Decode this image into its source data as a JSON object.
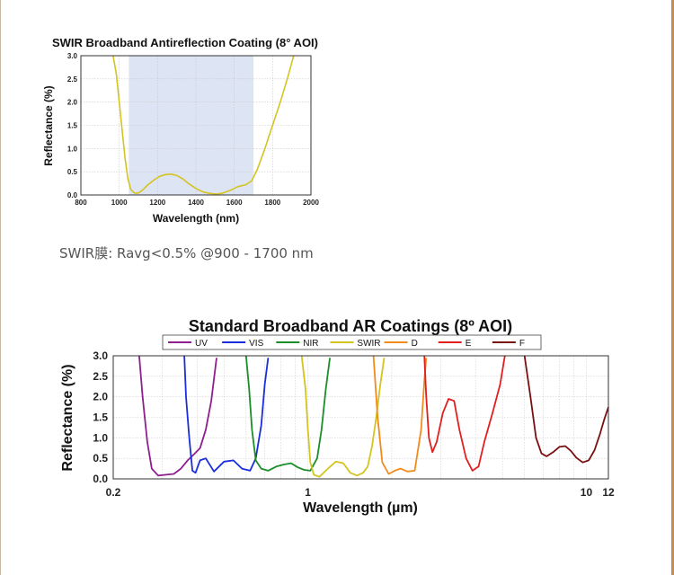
{
  "caption": "SWIR膜: Ravg<0.5% @900 - 1700 nm",
  "chart_data": [
    {
      "type": "line",
      "title": "SWIR Broadband Antireflection Coating (8° AOI)",
      "xlabel": "Wavelength (nm)",
      "ylabel": "Reflectance (%)",
      "xlim": [
        800,
        2000
      ],
      "ylim": [
        0,
        3
      ],
      "xticks": [
        "800",
        "1000",
        "1200",
        "1400",
        "1600",
        "1800",
        "2000"
      ],
      "yticks": [
        "0.0",
        "0.5",
        "1.0",
        "1.5",
        "2.0",
        "2.5",
        "3.0"
      ],
      "grid": true,
      "shaded_band": [
        1050,
        1700
      ],
      "band_color": "#dde4f4",
      "series": [
        {
          "color": "#d4c421",
          "x": [
            968,
            985,
            1000,
            1015,
            1030,
            1045,
            1060,
            1080,
            1100,
            1120,
            1150,
            1180,
            1210,
            1240,
            1270,
            1300,
            1330,
            1360,
            1400,
            1440,
            1480,
            1510,
            1540,
            1580,
            1620,
            1660,
            1690,
            1720,
            1760,
            1800,
            1840,
            1880,
            1910
          ],
          "y": [
            3.0,
            2.6,
            2.0,
            1.4,
            0.8,
            0.35,
            0.12,
            0.04,
            0.04,
            0.1,
            0.22,
            0.32,
            0.4,
            0.44,
            0.45,
            0.42,
            0.35,
            0.25,
            0.14,
            0.06,
            0.03,
            0.02,
            0.04,
            0.1,
            0.18,
            0.22,
            0.3,
            0.55,
            1.0,
            1.5,
            2.0,
            2.55,
            3.0
          ]
        }
      ]
    },
    {
      "type": "line",
      "title": "Standard Broadband AR Coatings (8º AOI)",
      "xlabel": "Wavelength (µm)",
      "ylabel": "Reflectance (%)",
      "xscale": "log",
      "xlim": [
        0.2,
        12
      ],
      "ylim": [
        0,
        3
      ],
      "xticks": [
        {
          "value": 0.2,
          "label": "0.2"
        },
        {
          "value": 1,
          "label": "1"
        },
        {
          "value": 10,
          "label": "10"
        },
        {
          "value": 12,
          "label": "12"
        }
      ],
      "yticks": [
        "0.0",
        "0.5",
        "1.0",
        "1.5",
        "2.0",
        "2.5",
        "3.0"
      ],
      "grid": true,
      "legend_position": "top",
      "series": [
        {
          "name": "UV",
          "color": "#8e1f8e",
          "x": [
            0.248,
            0.255,
            0.265,
            0.275,
            0.29,
            0.31,
            0.33,
            0.35,
            0.37,
            0.39,
            0.41,
            0.43,
            0.45,
            0.47
          ],
          "y": [
            3.0,
            2.0,
            0.9,
            0.25,
            0.08,
            0.1,
            0.12,
            0.25,
            0.45,
            0.6,
            0.75,
            1.2,
            1.9,
            2.95
          ]
        },
        {
          "name": "VIS",
          "color": "#1a2edc",
          "x": [
            0.36,
            0.365,
            0.375,
            0.385,
            0.395,
            0.41,
            0.43,
            0.46,
            0.5,
            0.54,
            0.58,
            0.62,
            0.65,
            0.68,
            0.7,
            0.72
          ],
          "y": [
            3.0,
            2.0,
            1.0,
            0.2,
            0.15,
            0.45,
            0.5,
            0.18,
            0.42,
            0.45,
            0.25,
            0.2,
            0.5,
            1.3,
            2.3,
            2.95
          ]
        },
        {
          "name": "NIR",
          "color": "#1b8e2a",
          "x": [
            0.6,
            0.615,
            0.63,
            0.65,
            0.68,
            0.72,
            0.77,
            0.82,
            0.87,
            0.92,
            0.97,
            1.02,
            1.08,
            1.12,
            1.16,
            1.2
          ],
          "y": [
            3.0,
            2.2,
            1.2,
            0.45,
            0.25,
            0.2,
            0.3,
            0.35,
            0.38,
            0.28,
            0.22,
            0.2,
            0.5,
            1.2,
            2.2,
            2.95
          ]
        },
        {
          "name": "SWIR",
          "color": "#d4c421",
          "x": [
            0.95,
            0.98,
            1.0,
            1.02,
            1.05,
            1.1,
            1.18,
            1.26,
            1.34,
            1.42,
            1.5,
            1.58,
            1.64,
            1.7,
            1.76,
            1.82,
            1.88
          ],
          "y": [
            3.0,
            2.2,
            1.2,
            0.4,
            0.1,
            0.05,
            0.25,
            0.42,
            0.38,
            0.15,
            0.08,
            0.15,
            0.3,
            0.8,
            1.5,
            2.3,
            2.95
          ]
        },
        {
          "name": "D",
          "color": "#f28b1e",
          "x": [
            1.72,
            1.78,
            1.85,
            1.95,
            2.05,
            2.15,
            2.28,
            2.42,
            2.55,
            2.62,
            2.66
          ],
          "y": [
            3.0,
            1.5,
            0.4,
            0.12,
            0.2,
            0.25,
            0.18,
            0.2,
            1.2,
            2.4,
            2.95
          ]
        },
        {
          "name": "E",
          "color": "#e11f1f",
          "x": [
            2.62,
            2.66,
            2.72,
            2.8,
            2.9,
            3.05,
            3.2,
            3.35,
            3.5,
            3.7,
            3.9,
            4.1,
            4.3,
            4.6,
            4.9,
            5.1
          ],
          "y": [
            3.0,
            2.0,
            1.0,
            0.65,
            0.9,
            1.6,
            1.95,
            1.9,
            1.2,
            0.5,
            0.2,
            0.3,
            0.9,
            1.6,
            2.3,
            3.0
          ]
        },
        {
          "name": "F",
          "color": "#7a1010",
          "x": [
            6.0,
            6.3,
            6.6,
            6.9,
            7.2,
            7.6,
            8.0,
            8.4,
            8.8,
            9.2,
            9.7,
            10.2,
            10.7,
            11.2,
            11.6,
            12.0
          ],
          "y": [
            3.0,
            2.0,
            1.0,
            0.62,
            0.55,
            0.65,
            0.78,
            0.8,
            0.68,
            0.52,
            0.4,
            0.45,
            0.7,
            1.1,
            1.45,
            1.75
          ]
        }
      ]
    }
  ]
}
